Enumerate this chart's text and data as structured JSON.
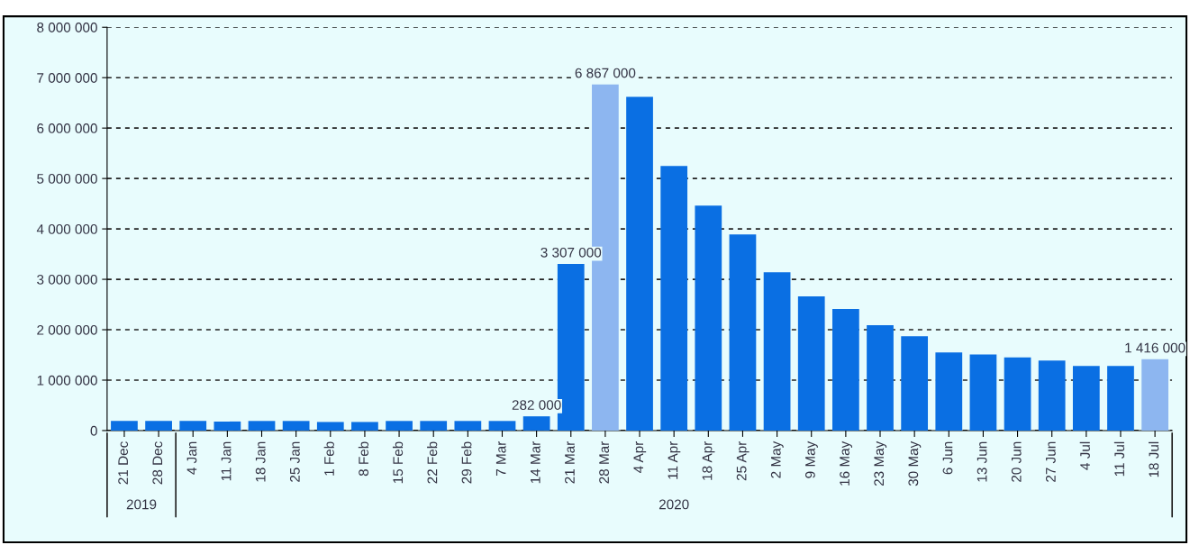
{
  "chart_data": {
    "type": "bar",
    "categories": [
      "21 Dec",
      "28 Dec",
      "4 Jan",
      "11 Jan",
      "18 Jan",
      "25 Jan",
      "1 Feb",
      "8 Feb",
      "15 Feb",
      "22 Feb",
      "29 Feb",
      "7 Mar",
      "14 Mar",
      "21 Mar",
      "28 Mar",
      "4 Apr",
      "11 Apr",
      "18 Apr",
      "25 Apr",
      "2 May",
      "9 May",
      "16 May",
      "23 May",
      "30 May",
      "6 Jun",
      "13 Jun",
      "20 Jun",
      "27 Jun",
      "4 Jul",
      "11 Jul",
      "18 Jul"
    ],
    "values": [
      190000,
      190000,
      190000,
      180000,
      190000,
      190000,
      170000,
      170000,
      190000,
      190000,
      190000,
      190000,
      282000,
      3307000,
      6867000,
      6620000,
      5250000,
      4460000,
      3890000,
      3140000,
      2660000,
      2410000,
      2090000,
      1870000,
      1550000,
      1510000,
      1450000,
      1390000,
      1280000,
      1280000,
      1416000
    ],
    "colors": [
      "#0a6fe3",
      "#0a6fe3",
      "#0a6fe3",
      "#0a6fe3",
      "#0a6fe3",
      "#0a6fe3",
      "#0a6fe3",
      "#0a6fe3",
      "#0a6fe3",
      "#0a6fe3",
      "#0a6fe3",
      "#0a6fe3",
      "#0a6fe3",
      "#0a6fe3",
      "#8db6f0",
      "#0a6fe3",
      "#0a6fe3",
      "#0a6fe3",
      "#0a6fe3",
      "#0a6fe3",
      "#0a6fe3",
      "#0a6fe3",
      "#0a6fe3",
      "#0a6fe3",
      "#0a6fe3",
      "#0a6fe3",
      "#0a6fe3",
      "#0a6fe3",
      "#0a6fe3",
      "#0a6fe3",
      "#8db6f0"
    ],
    "value_labels": [
      null,
      null,
      null,
      null,
      null,
      null,
      null,
      null,
      null,
      null,
      null,
      null,
      "282 000",
      "3 307 000",
      "6 867 000",
      null,
      null,
      null,
      null,
      null,
      null,
      null,
      null,
      null,
      null,
      null,
      null,
      null,
      null,
      null,
      "1 416 000"
    ],
    "ylim": [
      0,
      8000000
    ],
    "yticks": [
      0,
      {
        "value": 1000000,
        "label": "1 000 000"
      },
      {
        "value": 2000000,
        "label": "2 000 000"
      },
      {
        "value": 3000000,
        "label": "3 000 000"
      },
      {
        "value": 4000000,
        "label": "4 000 000"
      },
      {
        "value": 5000000,
        "label": "5 000 000"
      },
      {
        "value": 6000000,
        "label": "6 000 000"
      },
      {
        "value": 7000000,
        "label": "7 000 000"
      },
      {
        "value": 8000000,
        "label": "8 000 000"
      }
    ],
    "grid": "y",
    "annotations": [
      "2019",
      "2020"
    ]
  }
}
